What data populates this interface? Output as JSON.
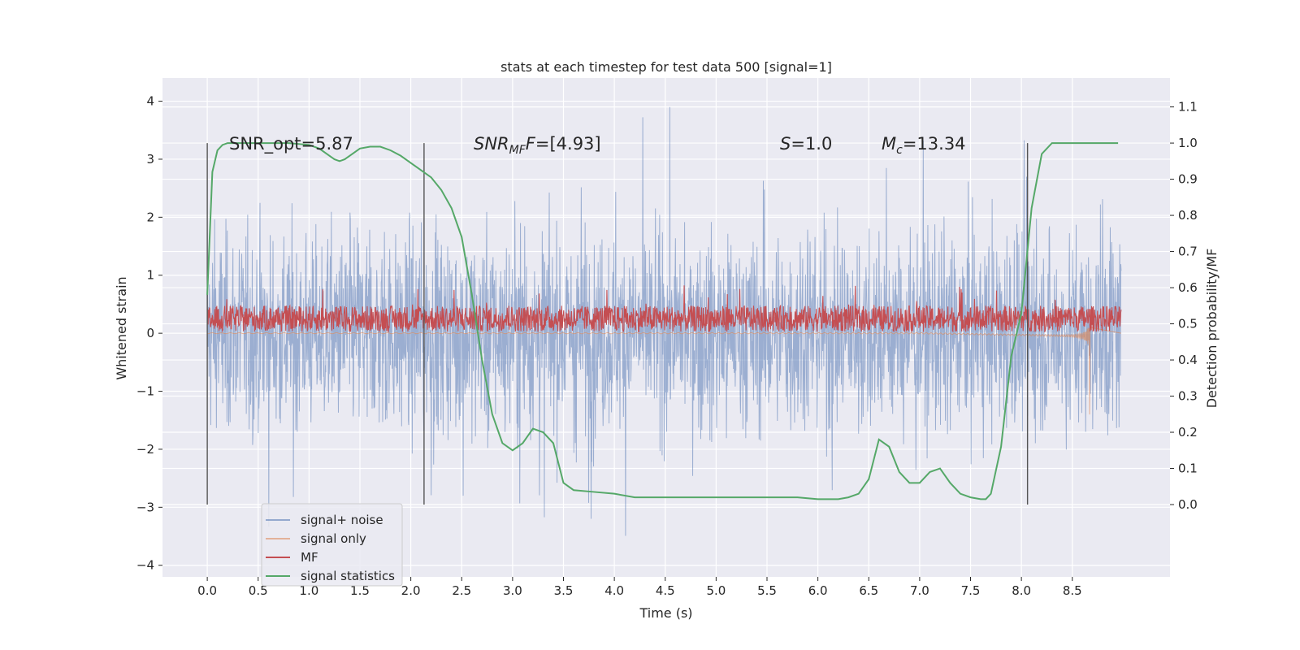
{
  "chart_data": {
    "type": "line",
    "title": "stats at each timestep for test data 500 [signal=1]",
    "xlabel": "Time (s)",
    "ylabel": "Whitened strain",
    "y2label": "Detection probability/MF",
    "xlim": [
      -0.44,
      9.46
    ],
    "ylim": [
      -4.2,
      4.4
    ],
    "y2lim": [
      -0.2,
      1.18
    ],
    "xticks": [
      "0.0",
      "0.5",
      "1.0",
      "1.5",
      "2.0",
      "2.5",
      "3.0",
      "3.5",
      "4.0",
      "4.5",
      "5.0",
      "5.5",
      "6.0",
      "6.5",
      "7.0",
      "7.5",
      "8.0",
      "8.5"
    ],
    "yticks": [
      "4",
      "3",
      "2",
      "1",
      "0",
      "−1",
      "−2",
      "−3",
      "−4"
    ],
    "y2ticks": [
      "1.1",
      "1.0",
      "0.9",
      "0.8",
      "0.7",
      "0.6",
      "0.5",
      "0.4",
      "0.3",
      "0.2",
      "0.1",
      "0.0"
    ],
    "grid": true,
    "legend_position": "lower-left",
    "annotations": {
      "snr_opt": "SNR_opt=5.87",
      "snr_mf_prefix": "SNR",
      "snr_mf_sub": "MF",
      "snr_mf_value": "=[4.93]",
      "s_symbol": "S",
      "s_value": "=1.0",
      "mc_symbol": "M",
      "mc_sub": "c",
      "mc_value": "=13.34"
    },
    "vertical_lines_x": [
      0.0,
      2.13,
      8.06
    ],
    "series": [
      {
        "name": "signal+ noise",
        "color": "#4c72b0",
        "axis": "left",
        "description_range": [
          0.0,
          8.98
        ],
        "amplitude_envelope": [
          -3.8,
          3.9
        ]
      },
      {
        "name": "signal only",
        "color": "#dd8452",
        "axis": "left",
        "chirp_end_x": 8.67,
        "chirp_end_amplitude": [
          -1.4,
          0.1
        ]
      },
      {
        "name": "MF",
        "color": "#c44e52",
        "axis": "left",
        "range": [
          0.0,
          1.05
        ],
        "baseline": 0.25
      },
      {
        "name": "signal statistics",
        "color": "#55a868",
        "axis": "right",
        "x": [
          0.0,
          0.05,
          0.1,
          0.15,
          0.2,
          0.3,
          0.4,
          0.6,
          0.8,
          1.0,
          1.1,
          1.2,
          1.25,
          1.3,
          1.35,
          1.4,
          1.5,
          1.6,
          1.7,
          1.8,
          1.9,
          2.0,
          2.1,
          2.2,
          2.3,
          2.4,
          2.5,
          2.6,
          2.7,
          2.8,
          2.9,
          3.0,
          3.1,
          3.15,
          3.2,
          3.3,
          3.4,
          3.5,
          3.6,
          3.8,
          4.0,
          4.2,
          4.4,
          4.6,
          4.8,
          5.0,
          5.2,
          5.4,
          5.6,
          5.8,
          6.0,
          6.2,
          6.3,
          6.4,
          6.5,
          6.6,
          6.7,
          6.8,
          6.9,
          7.0,
          7.1,
          7.2,
          7.3,
          7.4,
          7.5,
          7.6,
          7.65,
          7.7,
          7.8,
          7.9,
          8.0,
          8.1,
          8.2,
          8.3,
          8.5,
          8.7,
          8.9,
          8.95
        ],
        "y": [
          0.58,
          0.92,
          0.98,
          0.995,
          1.0,
          1.0,
          1.0,
          1.0,
          1.0,
          0.995,
          0.985,
          0.965,
          0.955,
          0.95,
          0.955,
          0.965,
          0.985,
          0.99,
          0.99,
          0.98,
          0.965,
          0.945,
          0.925,
          0.905,
          0.87,
          0.82,
          0.74,
          0.58,
          0.4,
          0.25,
          0.17,
          0.15,
          0.17,
          0.19,
          0.21,
          0.2,
          0.17,
          0.06,
          0.04,
          0.035,
          0.03,
          0.02,
          0.02,
          0.02,
          0.02,
          0.02,
          0.02,
          0.02,
          0.02,
          0.02,
          0.015,
          0.015,
          0.02,
          0.03,
          0.07,
          0.18,
          0.16,
          0.09,
          0.06,
          0.06,
          0.09,
          0.1,
          0.06,
          0.03,
          0.02,
          0.015,
          0.015,
          0.03,
          0.16,
          0.41,
          0.53,
          0.82,
          0.97,
          1.0,
          1.0,
          1.0,
          1.0,
          1.0
        ]
      }
    ]
  }
}
